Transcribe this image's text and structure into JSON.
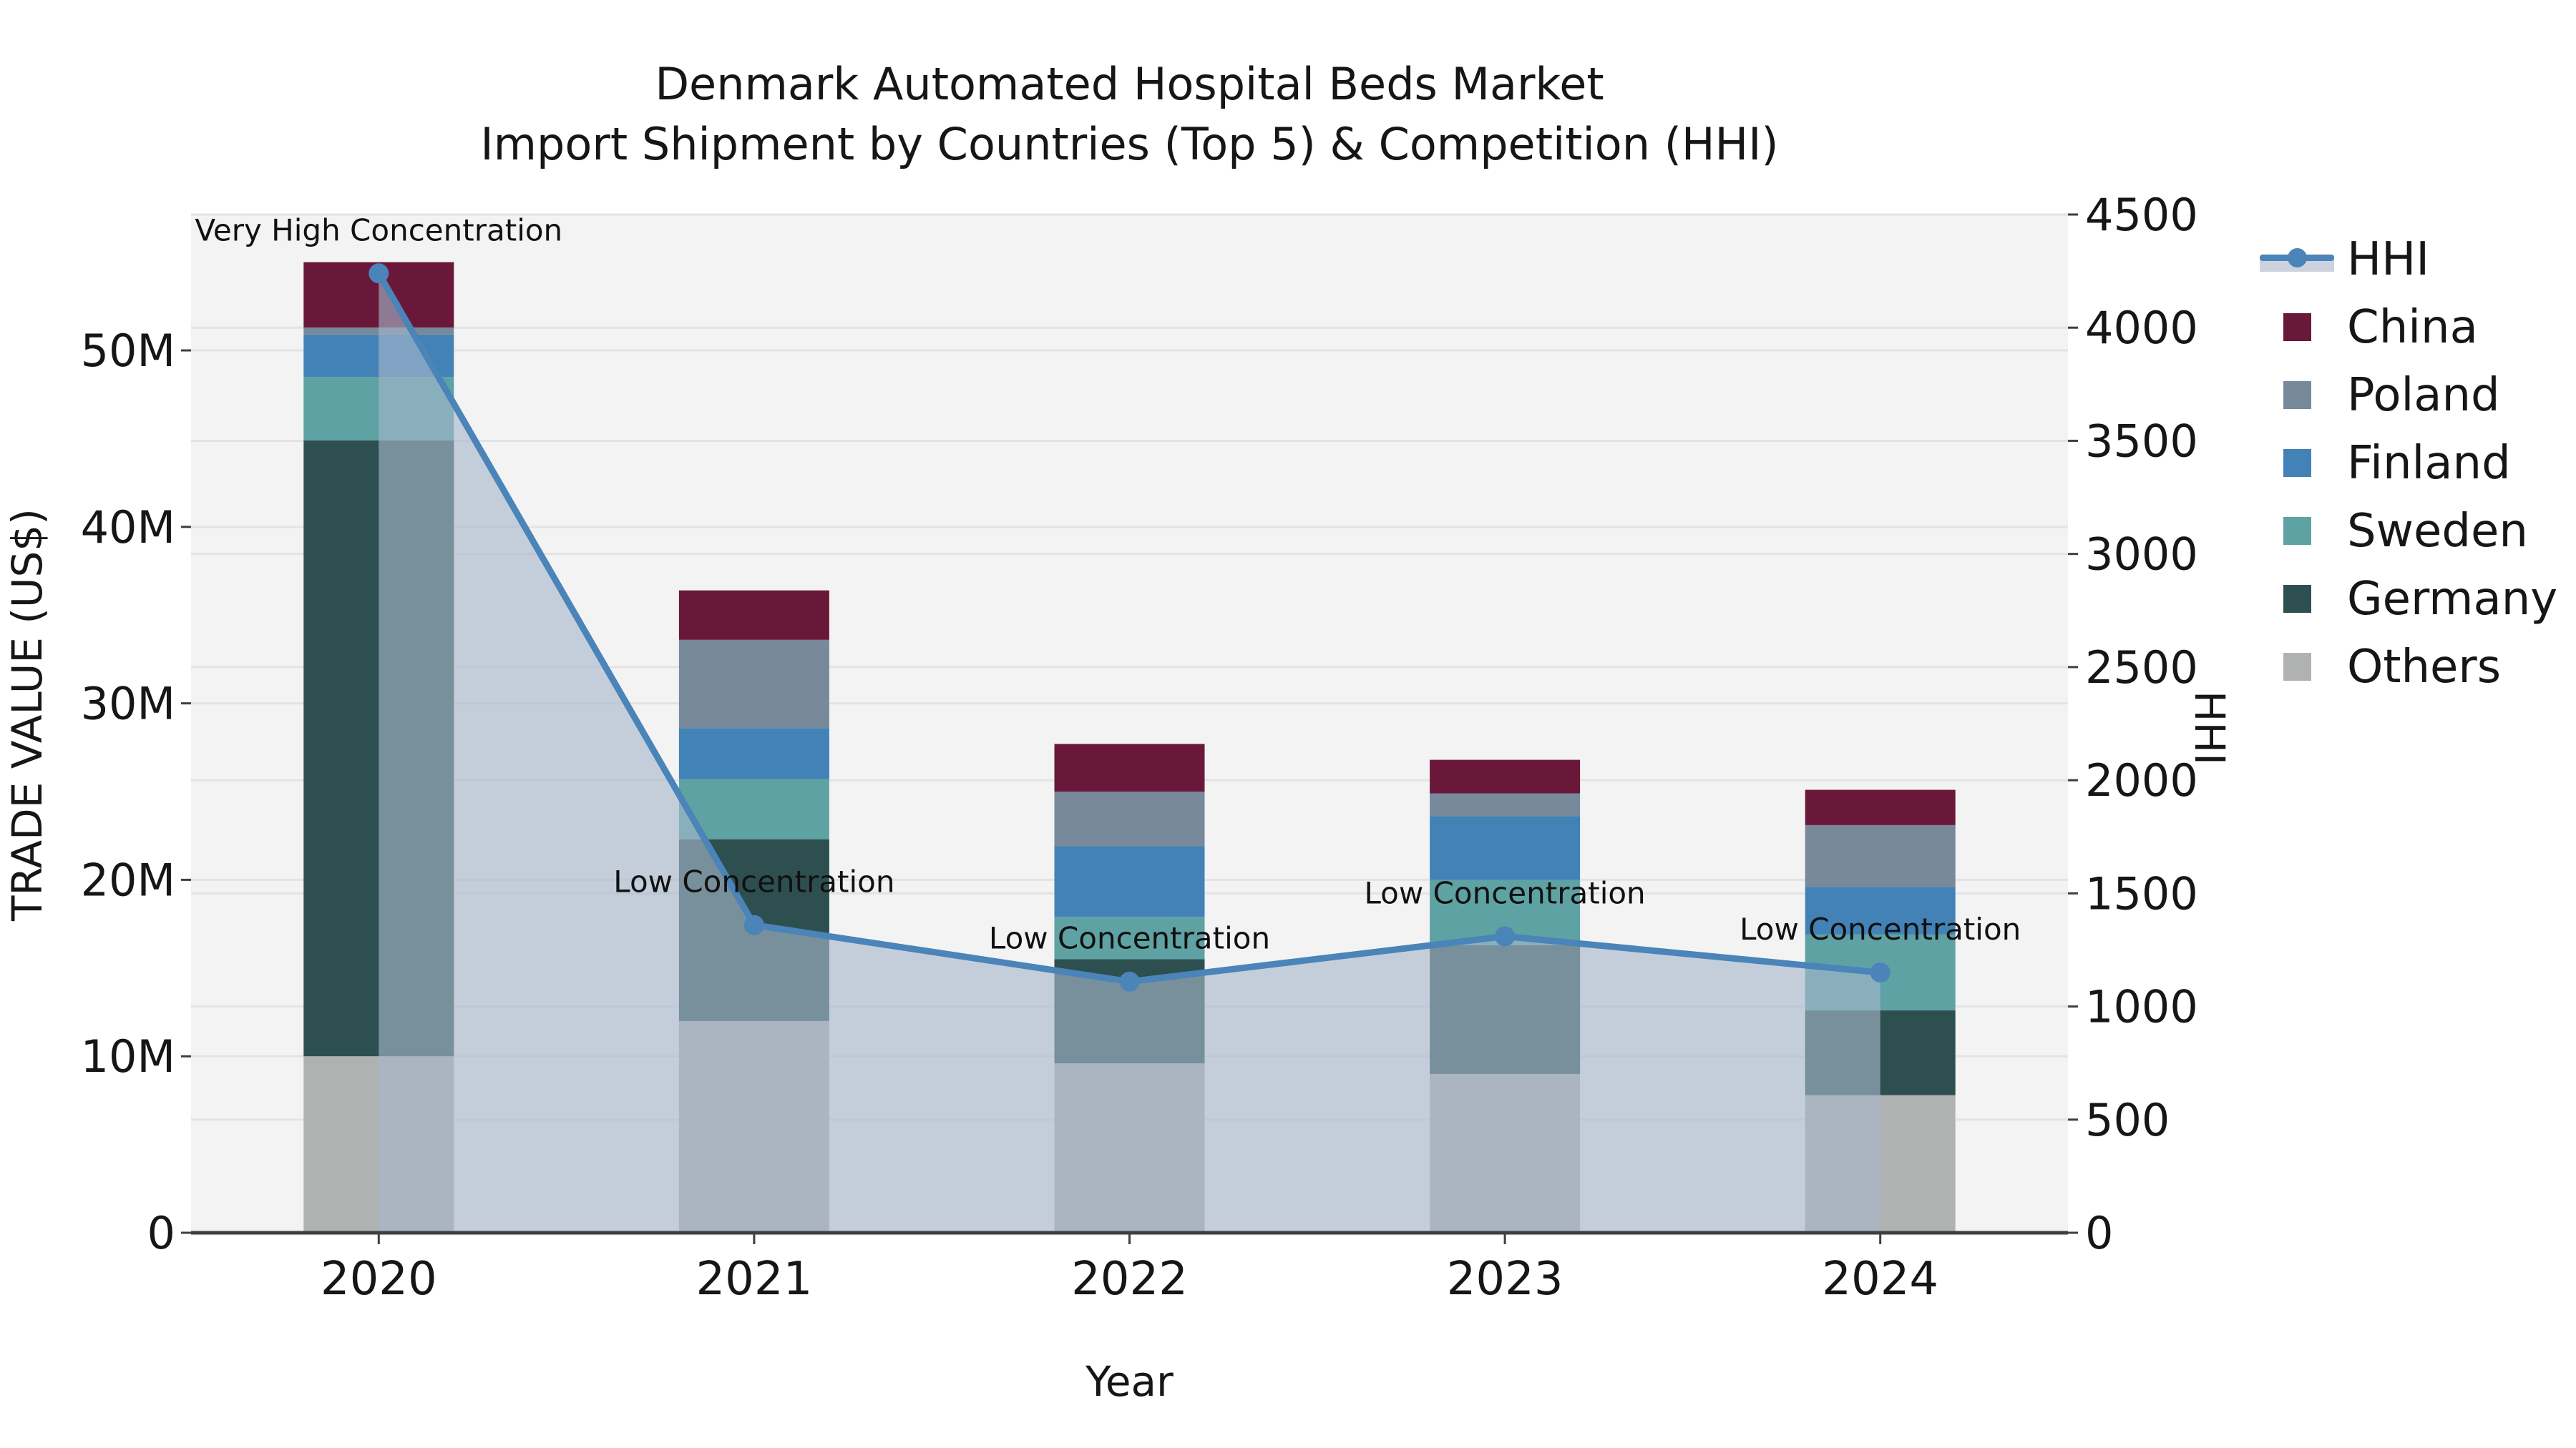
{
  "title": {
    "line1": "Denmark Automated Hospital Beds Market",
    "line2": "Import Shipment by Countries (Top 5) & Competition (HHI)"
  },
  "axes": {
    "x_label": "Year",
    "y_left_label": "TRADE VALUE (US$)",
    "y_right_label": "HHI",
    "y_left_ticks": [
      {
        "value": 0,
        "label": "0"
      },
      {
        "value": 10,
        "label": "10M"
      },
      {
        "value": 20,
        "label": "20M"
      },
      {
        "value": 30,
        "label": "30M"
      },
      {
        "value": 40,
        "label": "40M"
      },
      {
        "value": 50,
        "label": "50M"
      }
    ],
    "y_right_ticks": [
      {
        "value": 0,
        "label": "0"
      },
      {
        "value": 500,
        "label": "500"
      },
      {
        "value": 1000,
        "label": "1000"
      },
      {
        "value": 1500,
        "label": "1500"
      },
      {
        "value": 2000,
        "label": "2000"
      },
      {
        "value": 2500,
        "label": "2500"
      },
      {
        "value": 3000,
        "label": "3000"
      },
      {
        "value": 3500,
        "label": "3500"
      },
      {
        "value": 4000,
        "label": "4000"
      },
      {
        "value": 4500,
        "label": "4500"
      }
    ]
  },
  "legend": {
    "items": [
      {
        "label": "HHI",
        "type": "line",
        "color": "#4a84b8"
      },
      {
        "label": "China",
        "type": "patch",
        "color": "#6a1839"
      },
      {
        "label": "Poland",
        "type": "patch",
        "color": "#78899c"
      },
      {
        "label": "Finland",
        "type": "patch",
        "color": "#4282b6"
      },
      {
        "label": "Sweden",
        "type": "patch",
        "color": "#5ea2a4"
      },
      {
        "label": "Germany",
        "type": "patch",
        "color": "#2e4f50"
      },
      {
        "label": "Others",
        "type": "patch",
        "color": "#b0b2b1"
      }
    ]
  },
  "chart_data": {
    "type": "bar",
    "subtype": "stacked bars (left axis, US$ millions) + HHI line with shaded area (right axis)",
    "title": "Denmark Automated Hospital Beds Market — Import Shipment by Countries (Top 5) & Competition (HHI)",
    "xlabel": "Year",
    "ylabel_left": "TRADE VALUE (US$)",
    "ylabel_right": "HHI",
    "categories": [
      "2020",
      "2021",
      "2022",
      "2023",
      "2024"
    ],
    "unit": "US$ millions",
    "ylim_left": [
      0,
      57.7
    ],
    "ylim_right": [
      0,
      4500
    ],
    "grid": true,
    "legend_position": "right",
    "series": [
      {
        "name": "Others",
        "color": "#b0b2b1",
        "values": [
          10.0,
          12.0,
          9.6,
          9.0,
          7.8
        ]
      },
      {
        "name": "Germany",
        "color": "#2e4f50",
        "values": [
          34.9,
          10.3,
          5.9,
          7.3,
          4.8
        ]
      },
      {
        "name": "Sweden",
        "color": "#5ea2a4",
        "values": [
          3.6,
          3.4,
          2.4,
          3.7,
          4.3
        ]
      },
      {
        "name": "Finland",
        "color": "#4282b6",
        "values": [
          2.4,
          2.9,
          4.0,
          3.6,
          2.7
        ]
      },
      {
        "name": "Poland",
        "color": "#78899c",
        "values": [
          0.4,
          5.0,
          3.1,
          1.3,
          3.5
        ]
      },
      {
        "name": "China",
        "color": "#6a1839",
        "values": [
          3.7,
          2.8,
          2.7,
          1.9,
          2.0
        ]
      }
    ],
    "stack_totals": [
      55.0,
      36.4,
      27.7,
      26.8,
      25.1
    ],
    "line_series": {
      "name": "HHI",
      "axis": "right",
      "color": "#4a84b8",
      "area_fill": "rgba(167,183,203,0.62)",
      "values": [
        4240,
        1360,
        1110,
        1310,
        1150
      ]
    },
    "annotations": [
      {
        "category": "2020",
        "text": "Very High Concentration"
      },
      {
        "category": "2021",
        "text": "Low Concentration"
      },
      {
        "category": "2022",
        "text": "Low Concentration"
      },
      {
        "category": "2023",
        "text": "Low Concentration"
      },
      {
        "category": "2024",
        "text": "Low Concentration"
      }
    ]
  },
  "style": {
    "plot_bg": "#f3f3f4",
    "grid_color": "#e3e3e5",
    "axis_line_color": "#3f3f3f",
    "text_color": "#161616"
  }
}
